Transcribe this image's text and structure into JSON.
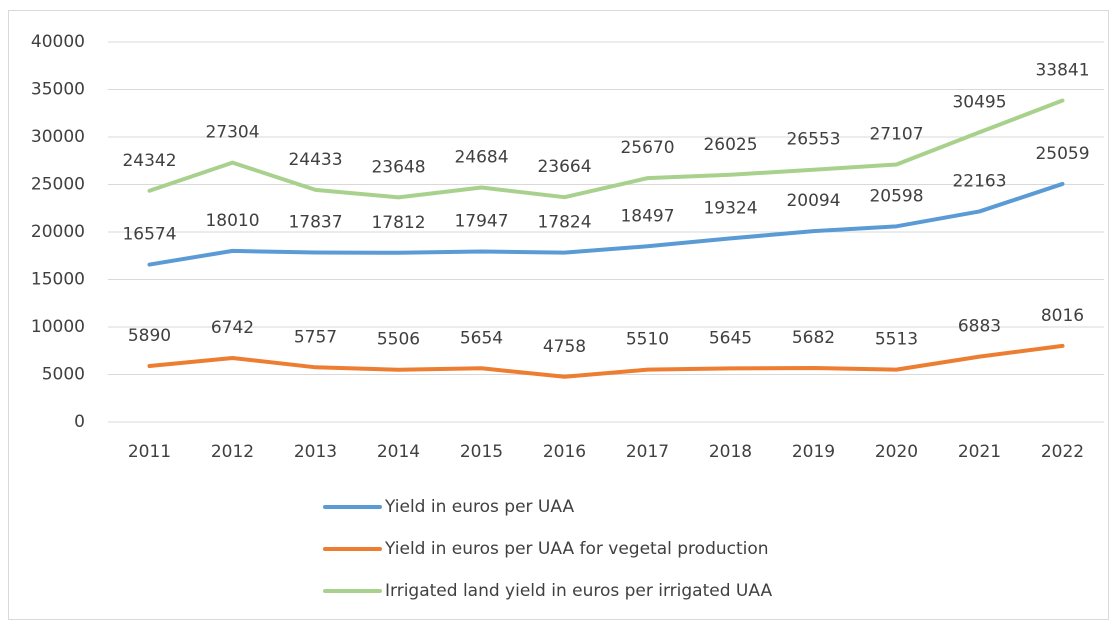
{
  "chart_data": {
    "type": "line",
    "categories": [
      "2011",
      "2012",
      "2013",
      "2014",
      "2015",
      "2016",
      "2017",
      "2018",
      "2019",
      "2020",
      "2021",
      "2022"
    ],
    "series": [
      {
        "name": "Yield in euros per UAA",
        "color": "#5b9bd5",
        "values": [
          16574,
          18010,
          17837,
          17812,
          17947,
          17824,
          18497,
          19324,
          20094,
          20598,
          22163,
          25059
        ]
      },
      {
        "name": "Yield in euros per UAA for vegetal production",
        "color": "#ed7d31",
        "values": [
          5890,
          6742,
          5757,
          5506,
          5654,
          4758,
          5510,
          5645,
          5682,
          5513,
          6883,
          8016
        ]
      },
      {
        "name": "Irrigated land yield in euros per irrigated UAA",
        "color": "#a9d18e",
        "values": [
          24342,
          27304,
          24433,
          23648,
          24684,
          23664,
          25670,
          26025,
          26553,
          27107,
          30495,
          33841
        ]
      }
    ],
    "ylim": [
      0,
      40000
    ],
    "yticks": [
      0,
      5000,
      10000,
      15000,
      20000,
      25000,
      30000,
      35000,
      40000
    ],
    "grid": true,
    "legend": "bottom"
  }
}
